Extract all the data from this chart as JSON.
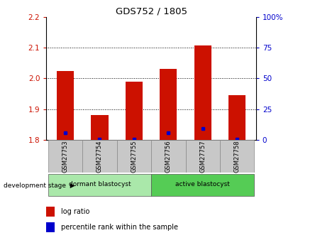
{
  "title": "GDS752 / 1805",
  "samples": [
    "GSM27753",
    "GSM27754",
    "GSM27755",
    "GSM27756",
    "GSM27757",
    "GSM27758"
  ],
  "log_ratio": [
    2.025,
    1.88,
    1.99,
    2.03,
    2.107,
    1.945
  ],
  "percentile_rank": [
    1.822,
    1.801,
    1.801,
    1.822,
    1.836,
    1.801
  ],
  "bar_base": 1.8,
  "ylim": [
    1.8,
    2.2
  ],
  "y2lim": [
    0,
    100
  ],
  "yticks": [
    1.8,
    1.9,
    2.0,
    2.1,
    2.2
  ],
  "y2ticks": [
    0,
    25,
    50,
    75,
    100
  ],
  "bar_color": "#cc1100",
  "dot_color": "#0000cc",
  "groups": [
    {
      "label": "dormant blastocyst",
      "start": 0,
      "end": 3,
      "color": "#aae8aa"
    },
    {
      "label": "active blastocyst",
      "start": 3,
      "end": 6,
      "color": "#55cc55"
    }
  ],
  "bar_width": 0.5,
  "tick_label_color_left": "#cc1100",
  "tick_label_color_right": "#0000cc",
  "sample_bg_color": "#c8c8c8",
  "grid_yticks": [
    1.9,
    2.0,
    2.1
  ]
}
